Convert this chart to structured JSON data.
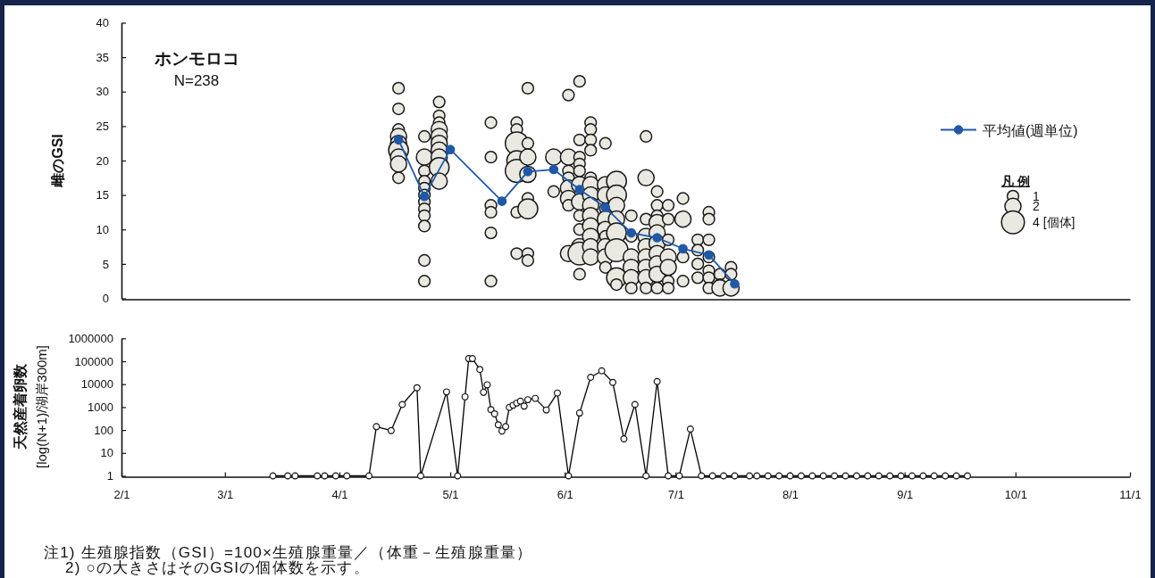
{
  "chart_data": [
    {
      "type": "bubble",
      "title": "ホンモロコ",
      "subtitle": "N=238",
      "ylabel": "雌のGSI",
      "legend_title": "凡 例",
      "legend": "right",
      "marker": "circle",
      "tick_labels": "y",
      "xlim": [
        "--02-01",
        "--11-01"
      ],
      "ylim": [
        0,
        40
      ],
      "yticks": [
        0,
        5,
        10,
        15,
        20,
        25,
        30,
        35,
        40
      ],
      "size_legend": [
        1,
        2,
        {
          "value": 4,
          "label": "4 [個体]"
        }
      ],
      "series": [
        {
          "color": "#e9e9e1",
          "x": [
            "--04-17",
            "--04-17",
            "--04-17",
            "--04-17",
            "--04-17",
            "--04-17",
            "--04-17",
            "--04-17",
            "--04-17",
            "--04-24",
            "--04-24",
            "--04-24",
            "--04-24",
            "--04-24",
            "--04-24",
            "--04-24",
            "--04-24",
            "--04-24",
            "--04-24",
            "--04-24",
            "--04-24",
            "--04-28",
            "--04-28",
            "--04-28",
            "--04-28",
            "--04-28",
            "--04-28",
            "--04-28",
            "--04-28",
            "--04-28",
            "--04-28",
            "--05-12",
            "--05-12",
            "--05-12",
            "--05-12",
            "--05-12",
            "--05-12",
            "--05-19",
            "--05-19",
            "--05-19",
            "--05-19",
            "--05-19",
            "--05-19",
            "--05-19",
            "--05-22",
            "--05-22",
            "--05-22",
            "--05-22",
            "--05-22",
            "--05-22",
            "--05-22",
            "--05-22",
            "--05-29",
            "--05-29",
            "--06-02",
            "--06-02",
            "--06-02",
            "--06-02",
            "--06-02",
            "--06-02",
            "--06-02",
            "--06-02",
            "--06-05",
            "--06-05",
            "--06-05",
            "--06-05",
            "--06-05",
            "--06-05",
            "--06-05",
            "--06-05",
            "--06-05",
            "--06-05",
            "--06-05",
            "--06-05",
            "--06-08",
            "--06-08",
            "--06-08",
            "--06-08",
            "--06-08",
            "--06-08",
            "--06-08",
            "--06-08",
            "--06-08",
            "--06-08",
            "--06-08",
            "--06-08",
            "--06-08",
            "--06-12",
            "--06-12",
            "--06-12",
            "--06-12",
            "--06-12",
            "--06-12",
            "--06-12",
            "--06-12",
            "--06-12",
            "--06-12",
            "--06-15",
            "--06-15",
            "--06-15",
            "--06-15",
            "--06-15",
            "--06-15",
            "--06-15",
            "--06-15",
            "--06-19",
            "--06-19",
            "--06-19",
            "--06-19",
            "--06-19",
            "--06-19",
            "--06-23",
            "--06-23",
            "--06-23",
            "--06-23",
            "--06-23",
            "--06-23",
            "--06-23",
            "--06-23",
            "--06-23",
            "--06-26",
            "--06-26",
            "--06-26",
            "--06-26",
            "--06-26",
            "--06-26",
            "--06-26",
            "--06-26",
            "--06-26",
            "--06-26",
            "--06-29",
            "--06-29",
            "--06-29",
            "--06-29",
            "--06-29",
            "--06-29",
            "--06-29",
            "--07-03",
            "--07-03",
            "--07-03",
            "--07-03",
            "--07-07",
            "--07-07",
            "--07-07",
            "--07-07",
            "--07-10",
            "--07-10",
            "--07-10",
            "--07-10",
            "--07-10",
            "--07-10",
            "--07-10",
            "--07-13",
            "--07-13",
            "--07-13",
            "--07-16",
            "--07-16",
            "--07-16"
          ],
          "values": [
            30.5,
            27.5,
            24.5,
            23.5,
            22.5,
            21.5,
            20.5,
            19.5,
            17.5,
            23.5,
            20.5,
            18.5,
            17,
            16,
            15,
            14,
            13,
            12,
            10.5,
            5.5,
            2.5,
            28.5,
            26.5,
            25.5,
            24.5,
            23.5,
            22.5,
            21.5,
            20.5,
            19,
            17,
            25.5,
            20.5,
            13.5,
            12.5,
            9.5,
            2.5,
            25.5,
            24.5,
            22.5,
            20,
            18.5,
            12.5,
            6.5,
            30.5,
            22.5,
            20.5,
            18,
            14.5,
            13,
            6.5,
            5.5,
            20.5,
            15.5,
            29.5,
            20.5,
            18.5,
            17.5,
            16,
            14.5,
            13.5,
            6.5,
            31.5,
            23,
            20.5,
            19.5,
            18.5,
            16.5,
            14,
            12,
            10,
            7.5,
            6.5,
            3.5,
            25.5,
            24.5,
            23,
            21.5,
            17.5,
            16.5,
            15,
            13.5,
            12,
            10.5,
            9,
            7.5,
            6,
            22.5,
            16.5,
            15,
            13,
            11.5,
            10,
            9,
            7.5,
            6,
            4.5,
            17,
            15,
            13.5,
            11.5,
            9.5,
            7,
            3,
            2,
            12,
            9,
            6,
            4.5,
            3,
            1.5,
            23.5,
            17.5,
            11.5,
            9,
            7.5,
            6,
            4.5,
            3,
            1.5,
            15.5,
            13.5,
            12,
            11,
            9.5,
            8,
            6.5,
            5,
            3.5,
            1.5,
            13.5,
            11.5,
            8.5,
            6,
            4.5,
            2.5,
            1.5,
            14.5,
            11.5,
            6,
            2.5,
            8.5,
            7,
            5,
            3,
            12.5,
            11.5,
            8.5,
            6,
            4,
            3,
            1.5,
            3.5,
            2,
            1.5,
            4.5,
            3.5,
            1.5
          ],
          "sizes": [
            1,
            1,
            1,
            2,
            2,
            3,
            2,
            2,
            1,
            1,
            2,
            1,
            1,
            1,
            1,
            1,
            1,
            1,
            1,
            1,
            1,
            1,
            1,
            1,
            2,
            2,
            2,
            2,
            2,
            3,
            2,
            1,
            1,
            1,
            1,
            1,
            1,
            1,
            1,
            4,
            3,
            4,
            1,
            1,
            1,
            1,
            2,
            2,
            1,
            3,
            1,
            1,
            2,
            1,
            1,
            2,
            1,
            1,
            2,
            2,
            1,
            2,
            1,
            1,
            1,
            1,
            1,
            2,
            2,
            1,
            1,
            2,
            4,
            1,
            1,
            1,
            1,
            1,
            1,
            2,
            2,
            2,
            2,
            2,
            2,
            2,
            2,
            1,
            2,
            2,
            1,
            2,
            2,
            1,
            2,
            2,
            1,
            3,
            3,
            2,
            2,
            3,
            4,
            3,
            1,
            1,
            1,
            2,
            2,
            2,
            1,
            1,
            2,
            1,
            2,
            2,
            2,
            2,
            2,
            1,
            1,
            1,
            1,
            2,
            2,
            2,
            2,
            2,
            2,
            1,
            1,
            1,
            1,
            2,
            2,
            1,
            1,
            1,
            2,
            1,
            1,
            1,
            1,
            1,
            1,
            1,
            1,
            1,
            1,
            1,
            1,
            1,
            1,
            1,
            2,
            1,
            1,
            2
          ]
        },
        {
          "type": "line",
          "name": "平均値(週単位)",
          "color": "#2058a8",
          "x": [
            "--04-17",
            "--04-24",
            "--05-01",
            "--05-15",
            "--05-22",
            "--05-29",
            "--06-05",
            "--06-12",
            "--06-19",
            "--06-26",
            "--07-03",
            "--07-10",
            "--07-17"
          ],
          "values": [
            23.0,
            14.8,
            21.6,
            14.1,
            18.4,
            18.7,
            15.8,
            13.2,
            9.5,
            8.8,
            7.2,
            6.3,
            2.1
          ]
        }
      ]
    },
    {
      "type": "line",
      "ylabel": "天然産着卵数\n[log(N+1)/湖岸300m]",
      "log": "y",
      "marker": "circle",
      "xlim": [
        "--02-01",
        "--11-01"
      ],
      "xticks": [
        {
          "value": "--02-01",
          "label": "2/1"
        },
        {
          "value": "--03-01",
          "label": "3/1"
        },
        {
          "value": "--04-01",
          "label": "4/1"
        },
        {
          "value": "--05-01",
          "label": "5/1"
        },
        {
          "value": "--06-01",
          "label": "6/1"
        },
        {
          "value": "--07-01",
          "label": "7/1"
        },
        {
          "value": "--08-01",
          "label": "8/1"
        },
        {
          "value": "--09-01",
          "label": "9/1"
        },
        {
          "value": "--10-01",
          "label": "10/1"
        },
        {
          "value": "--11-01",
          "label": "11/1"
        }
      ],
      "ylim": [
        1,
        1000000
      ],
      "yticks": [
        1,
        10,
        100,
        1000,
        10000,
        100000,
        1000000
      ],
      "series": [
        {
          "color": "#000000",
          "x": [
            "--03-14",
            "--03-18",
            "--03-20",
            "--03-26",
            "--03-28",
            "--03-31",
            "--04-03",
            "--04-09",
            "--04-11",
            "--04-15",
            "--04-18",
            "--04-22",
            "--04-23",
            "--04-30",
            "--05-03",
            "--05-05",
            "--05-06",
            "--05-07",
            "--05-09",
            "--05-10",
            "--05-11",
            "--05-12",
            "--05-13",
            "--05-14",
            "--05-15",
            "--05-16",
            "--05-17",
            "--05-18",
            "--05-19",
            "--05-20",
            "--05-21",
            "--05-22",
            "--05-24",
            "--05-27",
            "--05-30",
            "--06-02",
            "--06-05",
            "--06-08",
            "--06-11",
            "--06-14",
            "--06-17",
            "--06-20",
            "--06-23",
            "--06-26",
            "--06-29",
            "--07-02",
            "--07-05",
            "--07-08",
            "--07-11",
            "--07-14",
            "--07-17",
            "--07-21",
            "--07-23",
            "--07-26",
            "--07-29",
            "--08-01",
            "--08-04",
            "--08-07",
            "--08-10",
            "--08-13",
            "--08-16",
            "--08-19",
            "--08-22",
            "--08-25",
            "--08-28",
            "--08-31",
            "--09-03",
            "--09-06",
            "--09-09",
            "--09-12",
            "--09-15",
            "--09-18"
          ],
          "values": [
            1,
            1,
            1,
            1,
            1,
            1,
            1,
            1,
            140,
            95,
            1300,
            7000,
            1,
            4600,
            1,
            2800,
            130000,
            130000,
            44000,
            4400,
            9400,
            780,
            510,
            170,
            91,
            140,
            980,
            1200,
            1500,
            1800,
            1100,
            2100,
            2400,
            750,
            4100,
            1,
            550,
            20000,
            38000,
            12000,
            41,
            1300,
            1,
            13000,
            1,
            1,
            110,
            1,
            1,
            1,
            1,
            1,
            1,
            1,
            1,
            1,
            1,
            1,
            1,
            1,
            1,
            1,
            1,
            1,
            1,
            1,
            1,
            1,
            1,
            1,
            1,
            1
          ]
        }
      ],
      "annotations": [
        "注1) 生殖腺指数（GSI）=100×生殖腺重量／（体重－生殖腺重量）",
        "2) ○の大きさはそのGSIの個体数を示す。"
      ]
    }
  ]
}
